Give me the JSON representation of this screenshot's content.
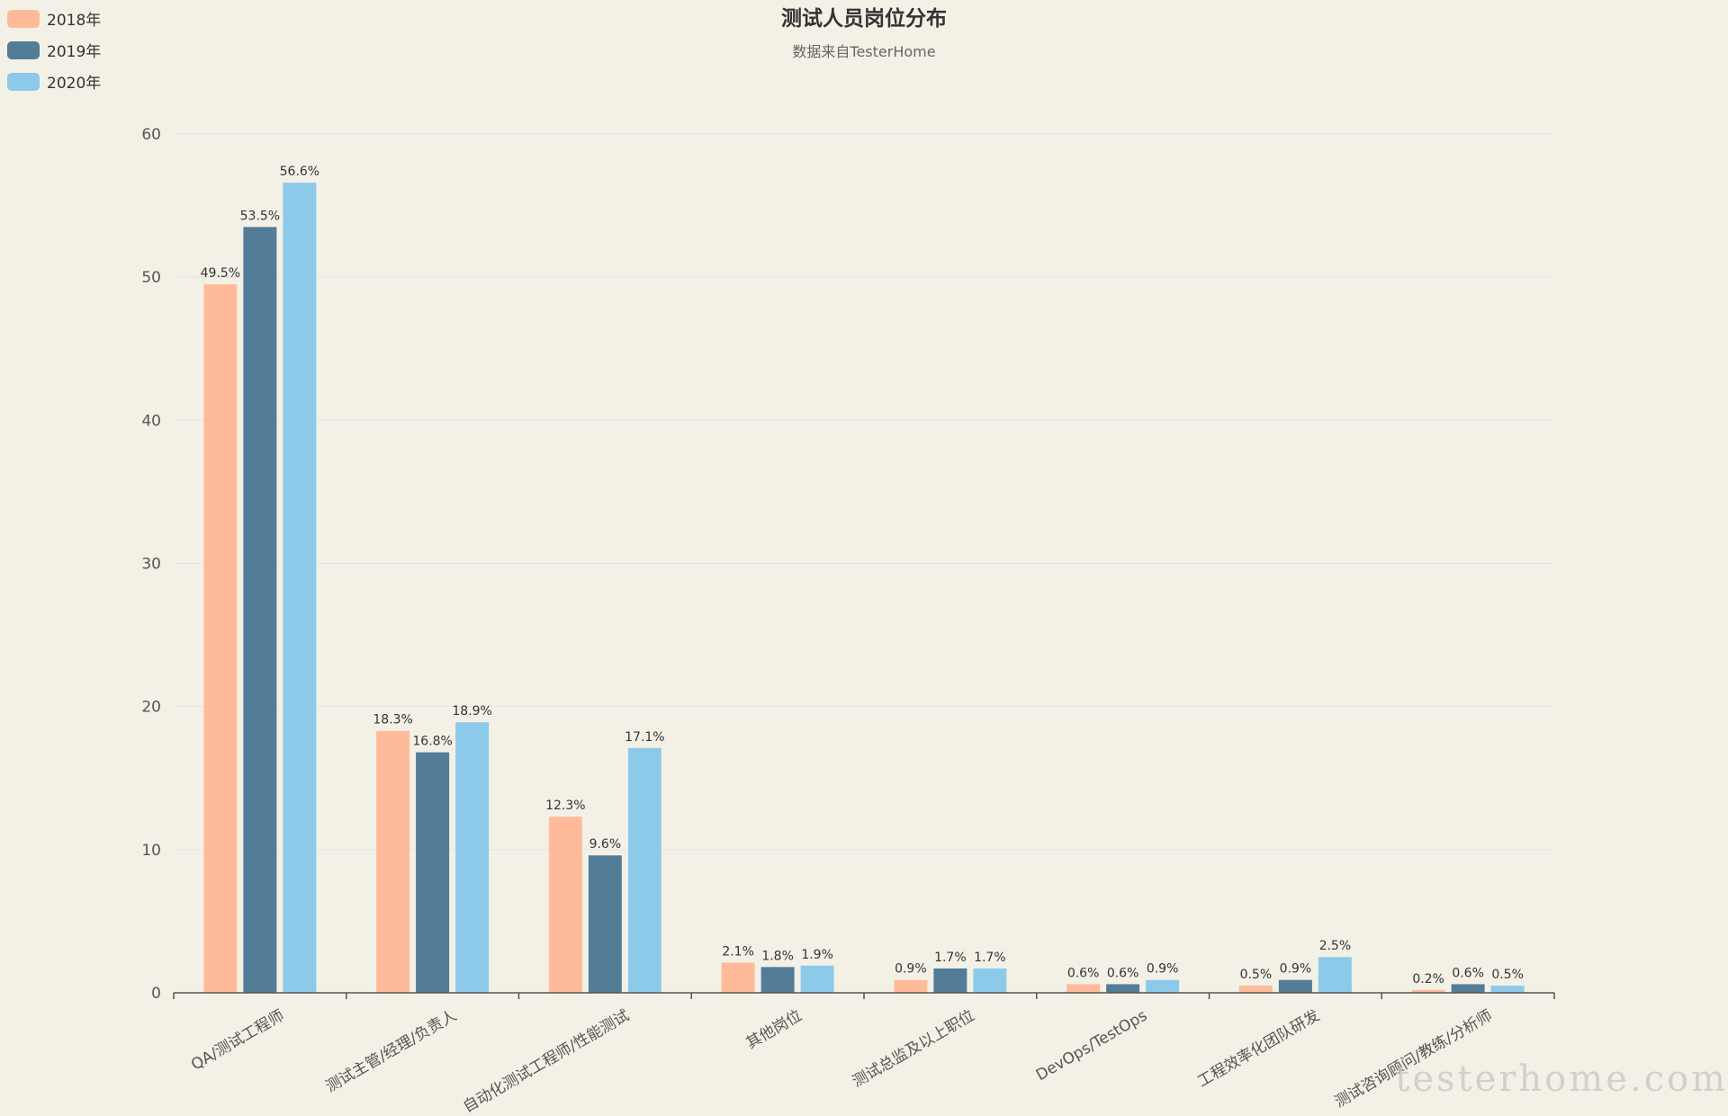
{
  "chart_data": {
    "type": "bar",
    "title": "测试人员岗位分布",
    "subtitle": "数据来自TesterHome",
    "categories": [
      "QA/测试工程师",
      "测试主管/经理/负责人",
      "自动化测试工程师/性能测试",
      "其他岗位",
      "测试总监及以上职位",
      "DevOps/TestOps",
      "工程效率化团队研发",
      "测试咨询顾问/教练/分析师"
    ],
    "series": [
      {
        "name": "2018年",
        "color": "#ffbb99",
        "values": [
          49.5,
          18.3,
          12.3,
          2.1,
          0.9,
          0.6,
          0.5,
          0.2
        ]
      },
      {
        "name": "2019年",
        "color": "#537c96",
        "values": [
          53.5,
          16.8,
          9.6,
          1.8,
          1.7,
          0.6,
          0.9,
          0.6
        ]
      },
      {
        "name": "2020年",
        "color": "#8dcaea",
        "values": [
          56.6,
          18.9,
          17.1,
          1.9,
          1.7,
          0.9,
          2.5,
          0.5
        ]
      }
    ],
    "value_suffix": "%",
    "ylim": [
      0,
      60
    ],
    "yticks": [
      0,
      10,
      20,
      30,
      40,
      50,
      60
    ],
    "grid": true,
    "legend_position": "top-left"
  },
  "watermark": "testerhome.com"
}
